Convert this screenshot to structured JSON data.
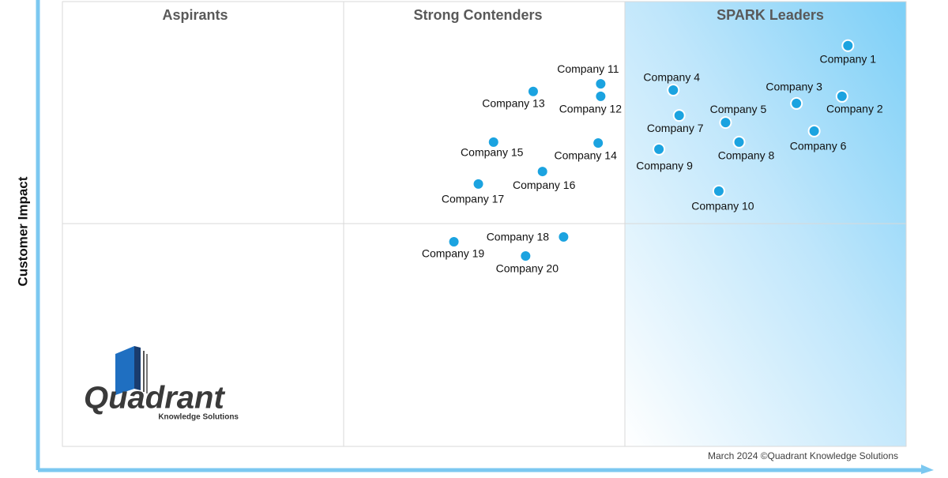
{
  "chart_data": {
    "type": "scatter",
    "quadrant_titles": [
      "Aspirants",
      "Strong Contenders",
      "SPARK Leaders"
    ],
    "ylabel": "Customer Impact",
    "footer": "March 2024 ©Quadrant Knowledge Solutions",
    "logo": {
      "title": "Quadrant",
      "subtitle": "Knowledge Solutions"
    },
    "xlim": [
      0,
      100
    ],
    "ylim": [
      0,
      100
    ],
    "color": "#1ba3e0",
    "points": [
      {
        "name": "Company 1",
        "x": 93.1,
        "y": 90.1
      },
      {
        "name": "Company 2",
        "x": 92.4,
        "y": 78.7
      },
      {
        "name": "Company 3",
        "x": 87.0,
        "y": 77.1
      },
      {
        "name": "Company 4",
        "x": 72.4,
        "y": 80.1
      },
      {
        "name": "Company 5",
        "x": 78.6,
        "y": 72.8
      },
      {
        "name": "Company 6",
        "x": 89.1,
        "y": 70.9
      },
      {
        "name": "Company 7",
        "x": 73.1,
        "y": 74.4
      },
      {
        "name": "Company 8",
        "x": 80.2,
        "y": 68.4
      },
      {
        "name": "Company 9",
        "x": 70.7,
        "y": 66.8
      },
      {
        "name": "Company 10",
        "x": 77.8,
        "y": 57.4
      },
      {
        "name": "Company 11",
        "x": 63.8,
        "y": 81.5
      },
      {
        "name": "Company 12",
        "x": 63.8,
        "y": 78.7
      },
      {
        "name": "Company 13",
        "x": 55.8,
        "y": 79.8
      },
      {
        "name": "Company 14",
        "x": 63.5,
        "y": 68.2
      },
      {
        "name": "Company 15",
        "x": 51.1,
        "y": 68.4
      },
      {
        "name": "Company 16",
        "x": 56.9,
        "y": 61.8
      },
      {
        "name": "Company 17",
        "x": 49.3,
        "y": 59.0
      },
      {
        "name": "Company 18",
        "x": 59.4,
        "y": 47.1
      },
      {
        "name": "Company 19",
        "x": 46.4,
        "y": 46.0
      },
      {
        "name": "Company 20",
        "x": 54.9,
        "y": 42.8
      }
    ]
  }
}
